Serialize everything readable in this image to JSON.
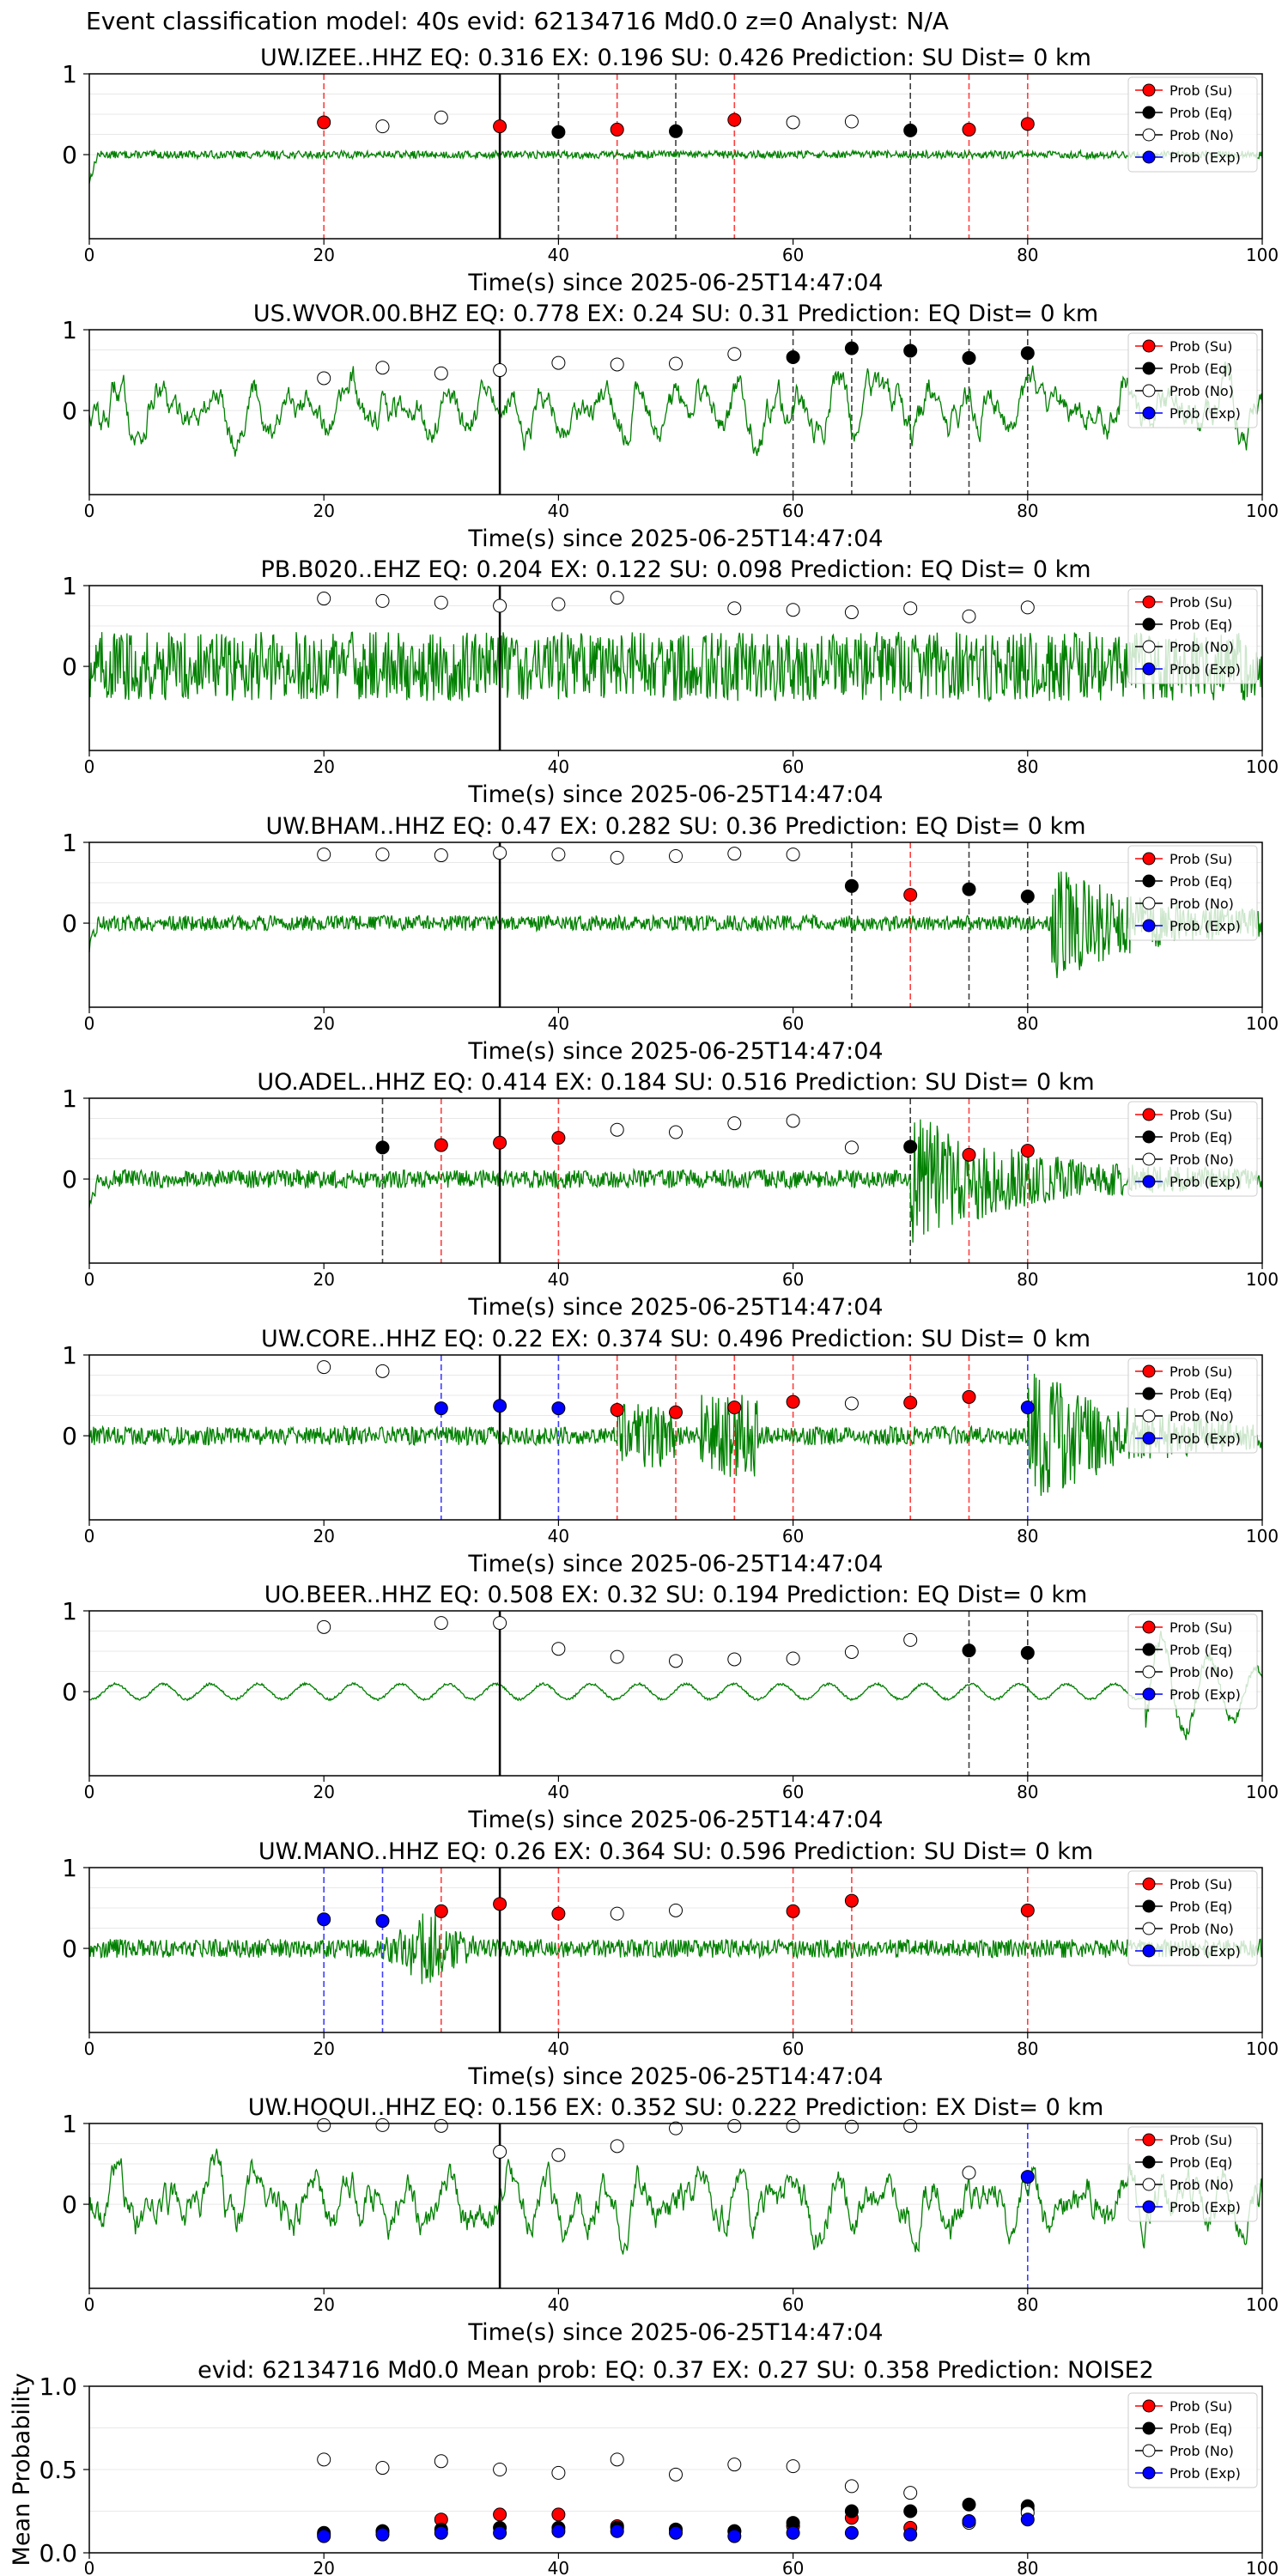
{
  "suptitle": "Event classification model: 40s evid: 62134716 Md0.0 z=0 Analyst: N/A",
  "colors": {
    "waveform": "#008000",
    "su": "#ff0000",
    "eq": "#000000",
    "no": "#ffffff",
    "exp": "#0000ff",
    "onset_line": "#000000"
  },
  "legend": {
    "placement": "top-right",
    "entries": [
      "Prob (Su)",
      "Prob (Eq)",
      "Prob (No)",
      "Prob (Exp)"
    ]
  },
  "chart_data": [
    {
      "type": "line",
      "station": "UW.IZEE..HHZ",
      "title": "UW.IZEE..HHZ   EQ: 0.316  EX: 0.196  SU: 0.426   Prediction: SU    Dist= 0 km",
      "xlabel": "Time(s) since 2025-06-25T14:47:04",
      "xlim": [
        0,
        100
      ],
      "ylim": [
        -1,
        1
      ],
      "xticks": [
        "0",
        "20",
        "40",
        "60",
        "80",
        "100"
      ],
      "yticks": [
        "1",
        "0"
      ],
      "trace": {
        "amplitude": 0.05,
        "style": "noise",
        "onset": null
      },
      "onset_line_x": 35,
      "probs": [
        {
          "t": 20,
          "cls": "su",
          "p": 0.4
        },
        {
          "t": 25,
          "cls": "no",
          "p": 0.35
        },
        {
          "t": 30,
          "cls": "no",
          "p": 0.46
        },
        {
          "t": 35,
          "cls": "su",
          "p": 0.35
        },
        {
          "t": 40,
          "cls": "eq",
          "p": 0.28
        },
        {
          "t": 45,
          "cls": "su",
          "p": 0.31
        },
        {
          "t": 50,
          "cls": "eq",
          "p": 0.29
        },
        {
          "t": 55,
          "cls": "su",
          "p": 0.43
        },
        {
          "t": 60,
          "cls": "no",
          "p": 0.4
        },
        {
          "t": 65,
          "cls": "no",
          "p": 0.41
        },
        {
          "t": 70,
          "cls": "eq",
          "p": 0.3
        },
        {
          "t": 75,
          "cls": "su",
          "p": 0.31
        },
        {
          "t": 80,
          "cls": "su",
          "p": 0.38
        }
      ]
    },
    {
      "type": "line",
      "station": "US.WVOR.00.BHZ",
      "title": "US.WVOR.00.BHZ   EQ: 0.778  EX: 0.24  SU: 0.31   Prediction: EQ    Dist= 0 km",
      "xlabel": "Time(s) since 2025-06-25T14:47:04",
      "xlim": [
        0,
        100
      ],
      "ylim": [
        -1,
        1
      ],
      "xticks": [
        "0",
        "20",
        "40",
        "60",
        "80",
        "100"
      ],
      "yticks": [
        "1",
        "0"
      ],
      "trace": {
        "amplitude": 0.45,
        "style": "microseism",
        "onset": null
      },
      "onset_line_x": 35,
      "probs": [
        {
          "t": 20,
          "cls": "no",
          "p": 0.4
        },
        {
          "t": 25,
          "cls": "no",
          "p": 0.53
        },
        {
          "t": 30,
          "cls": "no",
          "p": 0.46
        },
        {
          "t": 35,
          "cls": "no",
          "p": 0.5
        },
        {
          "t": 40,
          "cls": "no",
          "p": 0.59
        },
        {
          "t": 45,
          "cls": "no",
          "p": 0.57
        },
        {
          "t": 50,
          "cls": "no",
          "p": 0.58
        },
        {
          "t": 55,
          "cls": "no",
          "p": 0.7
        },
        {
          "t": 60,
          "cls": "eq",
          "p": 0.66
        },
        {
          "t": 65,
          "cls": "eq",
          "p": 0.77
        },
        {
          "t": 70,
          "cls": "eq",
          "p": 0.74
        },
        {
          "t": 75,
          "cls": "eq",
          "p": 0.65
        },
        {
          "t": 80,
          "cls": "eq",
          "p": 0.71
        }
      ]
    },
    {
      "type": "line",
      "station": "PB.B020..EHZ",
      "title": "PB.B020..EHZ   EQ: 0.204  EX: 0.122  SU: 0.098   Prediction: EQ    Dist= 0 km",
      "xlabel": "Time(s) since 2025-06-25T14:47:04",
      "xlim": [
        0,
        100
      ],
      "ylim": [
        -1,
        1
      ],
      "xticks": [
        "0",
        "20",
        "40",
        "60",
        "80",
        "100"
      ],
      "yticks": [
        "1",
        "0"
      ],
      "trace": {
        "amplitude": 0.45,
        "style": "noisy",
        "onset": null
      },
      "onset_line_x": 35,
      "probs": [
        {
          "t": 20,
          "cls": "no",
          "p": 0.84
        },
        {
          "t": 25,
          "cls": "no",
          "p": 0.81
        },
        {
          "t": 30,
          "cls": "no",
          "p": 0.79
        },
        {
          "t": 35,
          "cls": "no",
          "p": 0.75
        },
        {
          "t": 40,
          "cls": "no",
          "p": 0.77
        },
        {
          "t": 45,
          "cls": "no",
          "p": 0.85
        },
        {
          "t": 55,
          "cls": "no",
          "p": 0.72
        },
        {
          "t": 60,
          "cls": "no",
          "p": 0.7
        },
        {
          "t": 65,
          "cls": "no",
          "p": 0.67
        },
        {
          "t": 70,
          "cls": "no",
          "p": 0.72
        },
        {
          "t": 75,
          "cls": "no",
          "p": 0.62
        },
        {
          "t": 80,
          "cls": "no",
          "p": 0.73
        }
      ]
    },
    {
      "type": "line",
      "station": "UW.BHAM..HHZ",
      "title": "UW.BHAM..HHZ   EQ: 0.47  EX: 0.282  SU: 0.36   Prediction: EQ    Dist= 0 km",
      "xlabel": "Time(s) since 2025-06-25T14:47:04",
      "xlim": [
        0,
        100
      ],
      "ylim": [
        -1,
        1
      ],
      "xticks": [
        "0",
        "20",
        "40",
        "60",
        "80",
        "100"
      ],
      "yticks": [
        "1",
        "0"
      ],
      "trace": {
        "amplitude": 0.1,
        "style": "noise",
        "onset": 82
      },
      "onset_line_x": 35,
      "probs": [
        {
          "t": 20,
          "cls": "no",
          "p": 0.85
        },
        {
          "t": 25,
          "cls": "no",
          "p": 0.85
        },
        {
          "t": 30,
          "cls": "no",
          "p": 0.84
        },
        {
          "t": 35,
          "cls": "no",
          "p": 0.87
        },
        {
          "t": 40,
          "cls": "no",
          "p": 0.85
        },
        {
          "t": 45,
          "cls": "no",
          "p": 0.81
        },
        {
          "t": 50,
          "cls": "no",
          "p": 0.83
        },
        {
          "t": 55,
          "cls": "no",
          "p": 0.86
        },
        {
          "t": 60,
          "cls": "no",
          "p": 0.85
        },
        {
          "t": 65,
          "cls": "eq",
          "p": 0.46
        },
        {
          "t": 70,
          "cls": "su",
          "p": 0.35
        },
        {
          "t": 75,
          "cls": "eq",
          "p": 0.42
        },
        {
          "t": 80,
          "cls": "eq",
          "p": 0.33
        }
      ]
    },
    {
      "type": "line",
      "station": "UO.ADEL..HHZ",
      "title": "UO.ADEL..HHZ   EQ: 0.414  EX: 0.184  SU: 0.516   Prediction: SU    Dist= 0 km",
      "xlabel": "Time(s) since 2025-06-25T14:47:04",
      "xlim": [
        0,
        100
      ],
      "ylim": [
        -1,
        1
      ],
      "xticks": [
        "0",
        "20",
        "40",
        "60",
        "80",
        "100"
      ],
      "yticks": [
        "1",
        "0"
      ],
      "trace": {
        "amplitude": 0.12,
        "style": "noise",
        "onset": 70
      },
      "onset_line_x": 35,
      "probs": [
        {
          "t": 25,
          "cls": "eq",
          "p": 0.39
        },
        {
          "t": 30,
          "cls": "su",
          "p": 0.42
        },
        {
          "t": 35,
          "cls": "su",
          "p": 0.45
        },
        {
          "t": 40,
          "cls": "su",
          "p": 0.51
        },
        {
          "t": 45,
          "cls": "no",
          "p": 0.61
        },
        {
          "t": 50,
          "cls": "no",
          "p": 0.58
        },
        {
          "t": 55,
          "cls": "no",
          "p": 0.69
        },
        {
          "t": 60,
          "cls": "no",
          "p": 0.72
        },
        {
          "t": 65,
          "cls": "no",
          "p": 0.39
        },
        {
          "t": 70,
          "cls": "eq",
          "p": 0.4
        },
        {
          "t": 75,
          "cls": "su",
          "p": 0.3
        },
        {
          "t": 80,
          "cls": "su",
          "p": 0.35
        }
      ]
    },
    {
      "type": "line",
      "station": "UW.CORE..HHZ",
      "title": "UW.CORE..HHZ   EQ: 0.22  EX: 0.374  SU: 0.496   Prediction: SU    Dist= 0 km",
      "xlabel": "Time(s) since 2025-06-25T14:47:04",
      "xlim": [
        0,
        100
      ],
      "ylim": [
        -1,
        1
      ],
      "xticks": [
        "0",
        "20",
        "40",
        "60",
        "80",
        "100"
      ],
      "yticks": [
        "1",
        "0"
      ],
      "trace": {
        "amplitude": 0.12,
        "style": "bursts",
        "onset": 80
      },
      "onset_line_x": 35,
      "probs": [
        {
          "t": 20,
          "cls": "no",
          "p": 0.85
        },
        {
          "t": 25,
          "cls": "no",
          "p": 0.8
        },
        {
          "t": 30,
          "cls": "exp",
          "p": 0.34
        },
        {
          "t": 35,
          "cls": "exp",
          "p": 0.37
        },
        {
          "t": 40,
          "cls": "exp",
          "p": 0.34
        },
        {
          "t": 45,
          "cls": "su",
          "p": 0.32
        },
        {
          "t": 50,
          "cls": "su",
          "p": 0.29
        },
        {
          "t": 55,
          "cls": "su",
          "p": 0.35
        },
        {
          "t": 60,
          "cls": "su",
          "p": 0.42
        },
        {
          "t": 65,
          "cls": "no",
          "p": 0.4
        },
        {
          "t": 70,
          "cls": "su",
          "p": 0.41
        },
        {
          "t": 75,
          "cls": "su",
          "p": 0.48
        },
        {
          "t": 80,
          "cls": "exp",
          "p": 0.35
        }
      ]
    },
    {
      "type": "line",
      "station": "UO.BEER..HHZ",
      "title": "UO.BEER..HHZ   EQ: 0.508  EX: 0.32  SU: 0.194   Prediction: EQ    Dist= 0 km",
      "xlabel": "Time(s) since 2025-06-25T14:47:04",
      "xlim": [
        0,
        100
      ],
      "ylim": [
        -1,
        1
      ],
      "xticks": [
        "0",
        "20",
        "40",
        "60",
        "80",
        "100"
      ],
      "yticks": [
        "1",
        "0"
      ],
      "trace": {
        "amplitude": 0.1,
        "style": "smooth",
        "onset": 90
      },
      "onset_line_x": 35,
      "probs": [
        {
          "t": 20,
          "cls": "no",
          "p": 0.8
        },
        {
          "t": 30,
          "cls": "no",
          "p": 0.85
        },
        {
          "t": 35,
          "cls": "no",
          "p": 0.85
        },
        {
          "t": 40,
          "cls": "no",
          "p": 0.53
        },
        {
          "t": 45,
          "cls": "no",
          "p": 0.43
        },
        {
          "t": 50,
          "cls": "no",
          "p": 0.38
        },
        {
          "t": 55,
          "cls": "no",
          "p": 0.4
        },
        {
          "t": 60,
          "cls": "no",
          "p": 0.41
        },
        {
          "t": 65,
          "cls": "no",
          "p": 0.49
        },
        {
          "t": 70,
          "cls": "no",
          "p": 0.64
        },
        {
          "t": 75,
          "cls": "eq",
          "p": 0.51
        },
        {
          "t": 80,
          "cls": "eq",
          "p": 0.48
        }
      ]
    },
    {
      "type": "line",
      "station": "UW.MANO..HHZ",
      "title": "UW.MANO..HHZ   EQ: 0.26  EX: 0.364  SU: 0.596   Prediction: SU    Dist= 0 km",
      "xlabel": "Time(s) since 2025-06-25T14:47:04",
      "xlim": [
        0,
        100
      ],
      "ylim": [
        -1,
        1
      ],
      "xticks": [
        "0",
        "20",
        "40",
        "60",
        "80",
        "100"
      ],
      "yticks": [
        "1",
        "0"
      ],
      "trace": {
        "amplitude": 0.12,
        "style": "burst29",
        "onset": null
      },
      "onset_line_x": 35,
      "probs": [
        {
          "t": 20,
          "cls": "exp",
          "p": 0.36
        },
        {
          "t": 25,
          "cls": "exp",
          "p": 0.34
        },
        {
          "t": 30,
          "cls": "su",
          "p": 0.46
        },
        {
          "t": 35,
          "cls": "su",
          "p": 0.55
        },
        {
          "t": 40,
          "cls": "su",
          "p": 0.43
        },
        {
          "t": 45,
          "cls": "no",
          "p": 0.43
        },
        {
          "t": 50,
          "cls": "no",
          "p": 0.47
        },
        {
          "t": 60,
          "cls": "su",
          "p": 0.46
        },
        {
          "t": 65,
          "cls": "su",
          "p": 0.59
        },
        {
          "t": 80,
          "cls": "su",
          "p": 0.47
        }
      ]
    },
    {
      "type": "line",
      "station": "UW.HOQUI..HHZ",
      "title": "UW.HOQUI..HHZ   EQ: 0.156  EX: 0.352  SU: 0.222   Prediction: EX    Dist= 0 km",
      "xlabel": "Time(s) since 2025-06-25T14:47:04",
      "xlim": [
        0,
        100
      ],
      "ylim": [
        -1,
        1
      ],
      "xticks": [
        "0",
        "20",
        "40",
        "60",
        "80",
        "100"
      ],
      "yticks": [
        "1",
        "0"
      ],
      "trace": {
        "amplitude": 0.5,
        "style": "microseism",
        "onset": null
      },
      "onset_line_x": 35,
      "probs": [
        {
          "t": 20,
          "cls": "no",
          "p": 0.98
        },
        {
          "t": 25,
          "cls": "no",
          "p": 0.98
        },
        {
          "t": 30,
          "cls": "no",
          "p": 0.97
        },
        {
          "t": 35,
          "cls": "no",
          "p": 0.65
        },
        {
          "t": 40,
          "cls": "no",
          "p": 0.61
        },
        {
          "t": 45,
          "cls": "no",
          "p": 0.72
        },
        {
          "t": 50,
          "cls": "no",
          "p": 0.94
        },
        {
          "t": 55,
          "cls": "no",
          "p": 0.97
        },
        {
          "t": 60,
          "cls": "no",
          "p": 0.97
        },
        {
          "t": 65,
          "cls": "no",
          "p": 0.96
        },
        {
          "t": 70,
          "cls": "no",
          "p": 0.97
        },
        {
          "t": 75,
          "cls": "no",
          "p": 0.39
        },
        {
          "t": 80,
          "cls": "exp",
          "p": 0.34
        }
      ]
    },
    {
      "type": "scatter",
      "station": "mean",
      "title": "evid: 62134716  Md0.0   Mean prob:    EQ: 0.37  EX: 0.27  SU: 0.358   Prediction: NOISE2",
      "xlabel": "",
      "ylabel": "Mean Probability",
      "xlim": [
        0,
        100
      ],
      "ylim": [
        0,
        1
      ],
      "xticks": [
        "0",
        "20",
        "40",
        "60",
        "80",
        "100"
      ],
      "yticks": [
        "1.0",
        "0.5",
        "0.0"
      ],
      "series": [
        {
          "name": "Prob (Su)",
          "cls": "su",
          "x": [
            20,
            25,
            30,
            35,
            40,
            45,
            50,
            55,
            60,
            65,
            70,
            75,
            80
          ],
          "y": [
            0.11,
            0.13,
            0.2,
            0.23,
            0.23,
            0.16,
            0.14,
            0.13,
            0.16,
            0.21,
            0.15,
            0.19,
            0.26
          ]
        },
        {
          "name": "Prob (Eq)",
          "cls": "eq",
          "x": [
            20,
            25,
            30,
            35,
            40,
            45,
            50,
            55,
            60,
            65,
            70,
            75,
            80
          ],
          "y": [
            0.12,
            0.13,
            0.14,
            0.15,
            0.15,
            0.15,
            0.14,
            0.13,
            0.18,
            0.25,
            0.25,
            0.29,
            0.28
          ]
        },
        {
          "name": "Prob (No)",
          "cls": "no",
          "x": [
            20,
            25,
            30,
            35,
            40,
            45,
            50,
            55,
            60,
            65,
            70,
            75,
            80
          ],
          "y": [
            0.56,
            0.51,
            0.55,
            0.5,
            0.48,
            0.56,
            0.47,
            0.53,
            0.52,
            0.4,
            0.36,
            0.18,
            0.24
          ]
        },
        {
          "name": "Prob (Exp)",
          "cls": "exp",
          "x": [
            20,
            25,
            30,
            35,
            40,
            45,
            50,
            55,
            60,
            65,
            70,
            75,
            80
          ],
          "y": [
            0.1,
            0.11,
            0.12,
            0.12,
            0.13,
            0.13,
            0.12,
            0.1,
            0.12,
            0.12,
            0.11,
            0.19,
            0.2
          ]
        }
      ]
    }
  ]
}
